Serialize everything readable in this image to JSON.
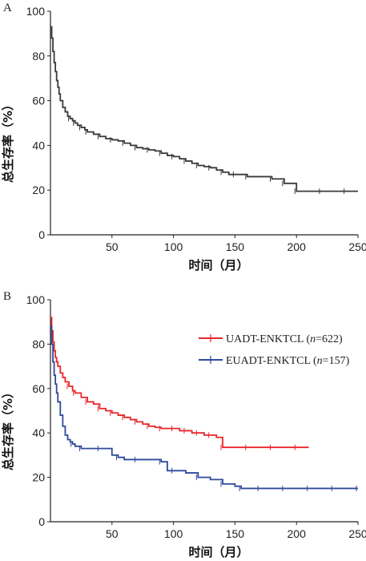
{
  "chart_data": [
    {
      "panel": "A",
      "type": "line",
      "xlabel": "时间（月）",
      "ylabel": "总生存率（%）",
      "xlim": [
        0,
        250
      ],
      "ylim": [
        0,
        100
      ],
      "xticks": [
        50,
        100,
        150,
        200,
        250
      ],
      "yticks": [
        0,
        20,
        40,
        60,
        80,
        100
      ],
      "series": [
        {
          "color": "#3a3a3a",
          "x": [
            0,
            1,
            2,
            3,
            4,
            5,
            6,
            7,
            8,
            10,
            12,
            14,
            16,
            18,
            20,
            22,
            25,
            28,
            30,
            35,
            40,
            45,
            50,
            55,
            60,
            65,
            70,
            75,
            80,
            85,
            90,
            95,
            100,
            105,
            110,
            115,
            120,
            125,
            130,
            135,
            140,
            145,
            150,
            155,
            160,
            170,
            180,
            185,
            190,
            195,
            200,
            210,
            220,
            230,
            240,
            250
          ],
          "y": [
            93,
            88,
            82,
            77,
            73,
            69,
            66,
            63,
            60,
            57,
            55,
            53,
            52,
            51,
            50,
            49,
            48,
            47,
            46,
            45,
            44,
            43,
            42.5,
            42,
            41,
            40,
            39,
            38.5,
            38,
            37.5,
            36.5,
            35.5,
            35,
            34,
            33,
            32,
            31,
            30.5,
            30,
            29,
            28,
            27,
            27,
            27,
            26,
            26,
            25,
            25,
            23,
            23,
            19.5,
            19.5,
            19.5,
            19.5,
            19.5,
            19.5
          ]
        }
      ]
    },
    {
      "panel": "B",
      "type": "line",
      "xlabel": "时间（月）",
      "ylabel": "总生存率（%）",
      "xlim": [
        0,
        250
      ],
      "ylim": [
        0,
        100
      ],
      "xticks": [
        50,
        100,
        150,
        200,
        250
      ],
      "yticks": [
        0,
        20,
        40,
        60,
        80,
        100
      ],
      "legend_position": "right",
      "series": [
        {
          "name": "UADT-ENKTCL (n=622)",
          "color": "#e8262b",
          "x": [
            0,
            1,
            2,
            3,
            4,
            5,
            6,
            8,
            10,
            12,
            15,
            18,
            20,
            25,
            30,
            35,
            40,
            45,
            50,
            55,
            60,
            65,
            70,
            75,
            80,
            85,
            90,
            95,
            100,
            105,
            110,
            115,
            120,
            125,
            130,
            135,
            140,
            150,
            160,
            170,
            180,
            190,
            200,
            210
          ],
          "y": [
            92,
            86,
            81,
            77,
            74,
            72,
            70,
            67,
            65,
            63,
            61,
            59,
            58,
            56,
            54,
            53,
            51,
            50,
            49,
            48,
            47,
            46,
            45,
            44,
            43,
            42.5,
            42,
            42,
            42,
            41,
            41,
            40,
            40,
            39,
            39,
            38,
            33.5,
            33.5,
            33.5,
            33.5,
            33.5,
            33.5,
            33.5,
            33.5
          ]
        },
        {
          "name": "EUADT-ENKTCL (n=157)",
          "color": "#2f4a9c",
          "x": [
            0,
            1,
            2,
            3,
            4,
            5,
            6,
            8,
            10,
            12,
            14,
            16,
            18,
            20,
            25,
            30,
            40,
            50,
            55,
            60,
            70,
            80,
            90,
            95,
            100,
            110,
            120,
            130,
            140,
            150,
            155,
            160,
            170,
            180,
            190,
            200,
            210,
            220,
            230,
            240,
            250
          ],
          "y": [
            88,
            80,
            72,
            66,
            62,
            58,
            54,
            48,
            43,
            39,
            37,
            36,
            35,
            34,
            33,
            33,
            33,
            30,
            29,
            28,
            28,
            28,
            27,
            23,
            23,
            22,
            20,
            19,
            17,
            16,
            15,
            15,
            15,
            15,
            15,
            15,
            15,
            15,
            15,
            15,
            15
          ]
        }
      ]
    }
  ],
  "labels": {
    "panel_a": "A",
    "panel_b": "B",
    "legend_1_prefix": "UADT-ENKTCL (",
    "legend_1_n": "n",
    "legend_1_suffix": "=622)",
    "legend_2_prefix": "EUADT-ENKTCL (",
    "legend_2_n": "n",
    "legend_2_suffix": "=157)"
  }
}
